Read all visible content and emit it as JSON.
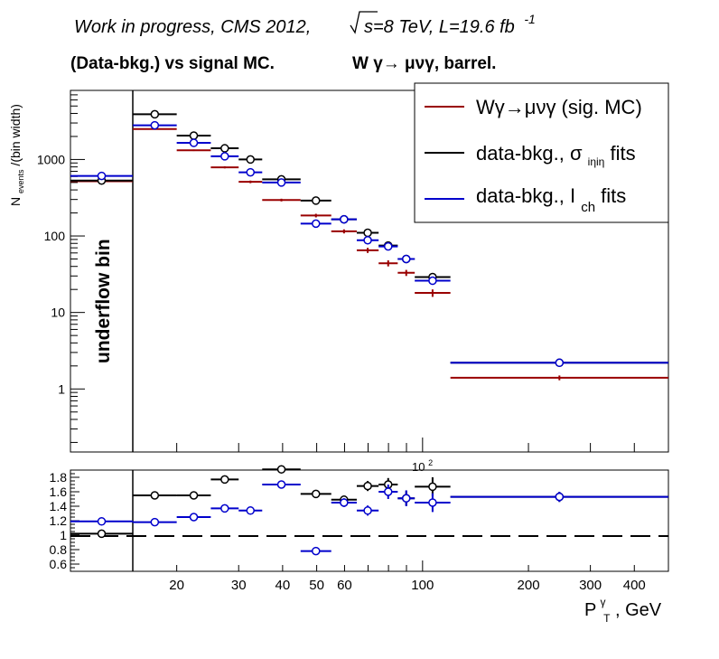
{
  "header": {
    "title_line1": "Work in progress, CMS 2012,",
    "sqrt_s_label": "s=8 TeV, L=19.6 fb",
    "lumi_exponent": "-1",
    "title_line2_left": "(Data-bkg.) vs signal MC.",
    "title_line2_right": "W  γ→  μνγ, barrel."
  },
  "legend": {
    "entries": [
      {
        "label": "Wγ→μνγ (sig. MC)",
        "sub": "",
        "suffix": "",
        "color": "#990000"
      },
      {
        "label": "data-bkg., σ",
        "sub": "iηiη",
        "suffix": " fits",
        "color": "#000000"
      },
      {
        "label": "data-bkg., I",
        "sub": "ch",
        "suffix": " fits",
        "color": "#0000cc"
      }
    ]
  },
  "axes": {
    "ylabel_main": "N",
    "ylabel_sub": "events",
    "ylabel_rest": "/(bin width)",
    "xlabel_main": "P",
    "xlabel_sup": "γ",
    "xlabel_sub": "T",
    "xlabel_rest": ", GeV",
    "main_y_ticks": [
      "1",
      "10",
      "100",
      "1000"
    ],
    "main_x_multiplier": "10",
    "main_x_multiplier_exp": "2",
    "ratio_y_ticks": [
      "0.6",
      "0.8",
      "1",
      "1.2",
      "1.4",
      "1.6",
      "1.8"
    ],
    "x_ticks": [
      "20",
      "30",
      "40",
      "50",
      "60",
      "100",
      "200",
      "300",
      "400"
    ]
  },
  "underflow_label": "underflow bin",
  "chart_data": [
    {
      "type": "scatter",
      "panel": "main",
      "x_scale": "log",
      "y_scale": "log",
      "xlim": [
        10,
        500
      ],
      "ylim": [
        0.15,
        8000
      ],
      "underflow_range": [
        10,
        15
      ],
      "bins": [
        [
          10,
          15
        ],
        [
          15,
          20
        ],
        [
          20,
          25
        ],
        [
          25,
          30
        ],
        [
          30,
          35
        ],
        [
          35,
          45
        ],
        [
          45,
          55
        ],
        [
          55,
          65
        ],
        [
          65,
          75
        ],
        [
          75,
          85
        ],
        [
          85,
          95
        ],
        [
          95,
          120
        ],
        [
          120,
          500
        ]
      ],
      "series": [
        {
          "name": "Wγ→μνγ (sig. MC)",
          "color": "#990000",
          "marker": "none",
          "values": [
            520,
            2500,
            1320,
            790,
            510,
            295,
            185,
            115,
            65,
            44,
            33,
            18,
            1.4
          ],
          "errors": [
            20,
            40,
            30,
            25,
            20,
            12,
            10,
            7,
            5,
            4,
            3,
            2,
            0.1
          ]
        },
        {
          "name": "data-bkg., σiηiη fits",
          "color": "#000000",
          "marker": "open-circle",
          "values": [
            530,
            3900,
            2050,
            1400,
            1000,
            550,
            290,
            165,
            110,
            75,
            50,
            29,
            2.2
          ],
          "errors": [
            30,
            100,
            80,
            70,
            60,
            40,
            20,
            15,
            10,
            7,
            5,
            3,
            0.15
          ]
        },
        {
          "name": "data-bkg., Ich fits",
          "color": "#0000cc",
          "marker": "open-circle",
          "values": [
            610,
            2800,
            1650,
            1100,
            680,
            500,
            145,
            165,
            88,
            73,
            50,
            26,
            2.2
          ],
          "errors": [
            30,
            100,
            70,
            60,
            40,
            30,
            12,
            15,
            10,
            7,
            5,
            3,
            0.15
          ]
        }
      ]
    },
    {
      "type": "scatter",
      "panel": "ratio",
      "x_scale": "log",
      "y_scale": "linear",
      "xlim": [
        10,
        500
      ],
      "ylim": [
        0.5,
        1.9
      ],
      "reference_line": 1,
      "bins": [
        [
          10,
          15
        ],
        [
          15,
          20
        ],
        [
          20,
          25
        ],
        [
          25,
          30
        ],
        [
          30,
          35
        ],
        [
          35,
          45
        ],
        [
          45,
          55
        ],
        [
          55,
          65
        ],
        [
          65,
          75
        ],
        [
          75,
          85
        ],
        [
          85,
          95
        ],
        [
          95,
          120
        ],
        [
          120,
          500
        ]
      ],
      "series": [
        {
          "name": "data-bkg., σiηiη fits",
          "color": "#000000",
          "marker": "open-circle",
          "values": [
            1.02,
            1.55,
            1.55,
            1.77,
            null,
            1.91,
            1.57,
            1.49,
            1.68,
            1.7,
            1.51,
            1.67,
            1.53
          ],
          "errors": [
            0.02,
            0.03,
            0.03,
            0.04,
            null,
            0.04,
            0.04,
            0.05,
            0.07,
            0.09,
            0.1,
            0.13,
            0.07
          ]
        },
        {
          "name": "data-bkg., Ich fits",
          "color": "#0000cc",
          "marker": "open-circle",
          "values": [
            1.19,
            1.18,
            1.25,
            1.37,
            1.34,
            1.7,
            0.78,
            1.45,
            1.34,
            1.6,
            1.51,
            1.45,
            1.53
          ],
          "errors": [
            0.02,
            0.03,
            0.03,
            0.03,
            0.03,
            0.04,
            0.03,
            0.06,
            0.07,
            0.1,
            0.11,
            0.13,
            0.07
          ]
        }
      ]
    }
  ]
}
